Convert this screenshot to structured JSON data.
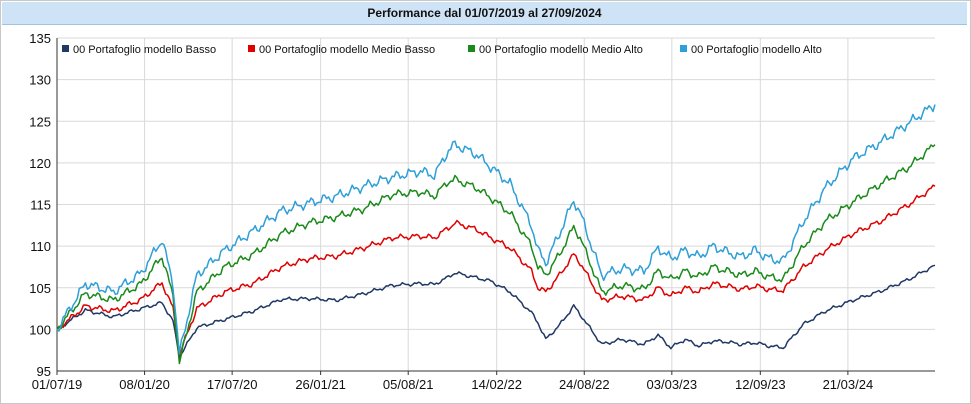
{
  "title": "Performance dal 01/07/2019 al 27/09/2024",
  "colors": {
    "title_bg": "#cfe3f7",
    "grid": "#d9d9d9"
  },
  "chart_data": {
    "type": "line",
    "title": "Performance dal 01/07/2019 al 27/09/2024",
    "xlabel": "",
    "ylabel": "",
    "x_tick_labels": [
      "01/07/19",
      "08/01/20",
      "17/07/20",
      "26/01/21",
      "05/08/21",
      "14/02/22",
      "24/08/22",
      "03/03/23",
      "12/09/23",
      "21/03/24"
    ],
    "y_ticks": [
      95,
      100,
      105,
      110,
      115,
      120,
      125,
      130,
      135
    ],
    "ylim": [
      95,
      135
    ],
    "xlim": [
      "01/07/19",
      "27/09/24"
    ],
    "grid": true,
    "legend_position": "top",
    "series": [
      {
        "name": "00 Portafoglio modello Basso",
        "color": "#1f3864",
        "x": [
          "01/07/19",
          "01/09/19",
          "01/11/19",
          "01/01/20",
          "15/02/20",
          "10/03/20",
          "24/03/20",
          "01/05/20",
          "01/07/20",
          "01/09/20",
          "01/11/20",
          "01/01/21",
          "01/03/21",
          "01/05/21",
          "01/07/21",
          "01/09/21",
          "01/10/21",
          "01/11/21",
          "15/11/21",
          "01/01/22",
          "01/02/22",
          "15/03/22",
          "01/05/22",
          "15/05/22",
          "01/06/22",
          "01/07/22",
          "01/08/22",
          "15/08/22",
          "01/10/22",
          "15/11/22",
          "01/01/23",
          "01/02/23",
          "01/03/23",
          "01/04/23",
          "01/05/23",
          "01/06/23",
          "01/07/23",
          "01/08/23",
          "01/09/23",
          "01/10/23",
          "01/11/23",
          "15/12/23",
          "01/02/24",
          "01/04/24",
          "01/06/24",
          "01/08/24",
          "27/09/24"
        ],
        "values": [
          100,
          102.3,
          101.5,
          102.5,
          103.2,
          101,
          96.7,
          100.2,
          101.2,
          102.2,
          103.6,
          103.7,
          103.5,
          104.3,
          105.3,
          105.5,
          105.4,
          106.3,
          106.8,
          106.2,
          105.8,
          104.5,
          102,
          100.8,
          98.8,
          100.5,
          102.8,
          101.8,
          98.2,
          98.8,
          98.2,
          99.3,
          97.8,
          98.8,
          98,
          98.6,
          98.5,
          98.2,
          98.4,
          98,
          97.8,
          100.6,
          102.2,
          103.5,
          104.6,
          106,
          107.7
        ]
      },
      {
        "name": "00 Portafoglio modello Medio Basso",
        "color": "#e00000",
        "x": [
          "01/07/19",
          "01/09/19",
          "01/11/19",
          "01/01/20",
          "15/02/20",
          "10/03/20",
          "24/03/20",
          "01/05/20",
          "01/07/20",
          "01/09/20",
          "01/11/20",
          "01/01/21",
          "01/03/21",
          "01/05/21",
          "01/07/21",
          "01/09/21",
          "01/10/21",
          "01/11/21",
          "15/11/21",
          "01/01/22",
          "01/02/22",
          "15/03/22",
          "01/05/22",
          "15/05/22",
          "01/06/22",
          "01/07/22",
          "01/08/22",
          "15/08/22",
          "01/10/22",
          "15/11/22",
          "01/01/23",
          "01/02/23",
          "01/03/23",
          "01/04/23",
          "01/05/23",
          "01/06/23",
          "01/07/23",
          "01/08/23",
          "01/09/23",
          "01/10/23",
          "01/11/23",
          "15/12/23",
          "01/02/24",
          "01/04/24",
          "01/06/24",
          "01/08/24",
          "27/09/24"
        ],
        "values": [
          100,
          102.8,
          102.2,
          103.6,
          105.6,
          102.5,
          97,
          102.5,
          104.5,
          105.5,
          107.5,
          108.5,
          108.8,
          109.8,
          111,
          111.2,
          111,
          112.2,
          112.8,
          112,
          111,
          109.8,
          107,
          105,
          104.5,
          106.5,
          109,
          108,
          103.5,
          104,
          103.5,
          105,
          104,
          105,
          104.5,
          105.5,
          105.2,
          104.8,
          105.2,
          104.8,
          104.7,
          107.5,
          109.5,
          111.5,
          113,
          115,
          117.2
        ]
      },
      {
        "name": "00 Portafoglio modello Medio Alto",
        "color": "#1a8a1a",
        "x": [
          "01/07/19",
          "01/09/19",
          "01/11/19",
          "01/01/20",
          "15/02/20",
          "10/03/20",
          "24/03/20",
          "01/05/20",
          "01/07/20",
          "01/09/20",
          "01/11/20",
          "01/01/21",
          "01/03/21",
          "01/05/21",
          "01/07/21",
          "01/09/21",
          "01/10/21",
          "01/11/21",
          "15/11/21",
          "01/01/22",
          "01/02/22",
          "15/03/22",
          "01/05/22",
          "15/05/22",
          "01/06/22",
          "01/07/22",
          "01/08/22",
          "15/08/22",
          "01/10/22",
          "15/11/22",
          "01/01/23",
          "01/02/23",
          "01/03/23",
          "01/04/23",
          "01/05/23",
          "01/06/23",
          "01/07/23",
          "01/08/23",
          "01/09/23",
          "01/10/23",
          "01/11/23",
          "15/12/23",
          "01/02/24",
          "01/04/24",
          "01/06/24",
          "01/08/24",
          "27/09/24"
        ],
        "values": [
          100,
          104.3,
          103.5,
          105.5,
          108.8,
          104,
          96,
          104.5,
          107.5,
          109,
          111.5,
          112.8,
          113.5,
          114.5,
          116.2,
          116.5,
          116,
          117.8,
          118,
          117,
          115.8,
          114,
          110,
          107.5,
          106.5,
          109,
          112.3,
          111,
          104.5,
          105.3,
          104.8,
          107,
          106,
          107,
          106.3,
          107.5,
          107,
          106.5,
          107,
          106.3,
          106,
          110,
          113,
          115.3,
          117.5,
          119.5,
          122.2
        ]
      },
      {
        "name": "00 Portafoglio modello Alto",
        "color": "#2e9fd8",
        "x": [
          "01/07/19",
          "01/09/19",
          "01/11/19",
          "01/01/20",
          "15/02/20",
          "10/03/20",
          "24/03/20",
          "01/05/20",
          "01/07/20",
          "01/09/20",
          "01/11/20",
          "01/01/21",
          "01/03/21",
          "01/05/21",
          "01/07/21",
          "01/09/21",
          "01/10/21",
          "01/11/21",
          "15/11/21",
          "01/01/22",
          "01/02/22",
          "15/03/22",
          "01/05/22",
          "15/05/22",
          "01/06/22",
          "01/07/22",
          "01/08/22",
          "15/08/22",
          "01/10/22",
          "15/11/22",
          "01/01/23",
          "01/02/23",
          "01/03/23",
          "01/04/23",
          "01/05/23",
          "01/06/23",
          "01/07/23",
          "01/08/23",
          "01/09/23",
          "01/10/23",
          "01/11/23",
          "15/12/23",
          "01/02/24",
          "01/04/24",
          "01/06/24",
          "01/08/24",
          "27/09/24"
        ],
        "values": [
          100,
          105.5,
          104.5,
          106.8,
          110.8,
          105.5,
          97,
          106.5,
          109.5,
          111.8,
          114.2,
          115.2,
          116,
          117.2,
          118.3,
          119,
          118.5,
          121.5,
          122.2,
          121,
          119.5,
          117.5,
          112.5,
          109.5,
          108,
          111.5,
          115.5,
          114,
          106.5,
          107.3,
          107,
          109.8,
          108.5,
          109.5,
          108.7,
          110,
          109.3,
          108.7,
          109.5,
          108.5,
          108.2,
          113,
          117,
          120.5,
          122.5,
          124.8,
          127
        ]
      }
    ]
  }
}
